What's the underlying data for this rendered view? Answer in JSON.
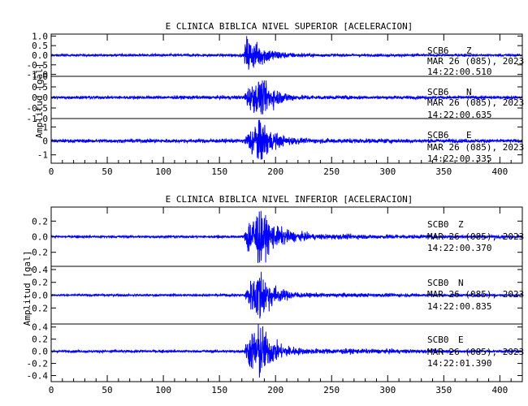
{
  "chart_data": [
    {
      "type": "line",
      "title": "E CLINICA BIBLICA NIVEL SUPERIOR [ACELERACION]",
      "xlabel": "",
      "ylabel": "Amplitud [gal]",
      "xlim": [
        0,
        420
      ],
      "x_ticks": [
        0,
        50,
        100,
        150,
        200,
        250,
        300,
        350,
        400
      ],
      "line_color": "#0000ff",
      "grid": false,
      "traces": [
        {
          "station": "SCB6",
          "component": "Z",
          "date_line": "MAR 26 (085), 2023",
          "time_line": "14:22:00.510",
          "ylim": [
            -1.1,
            1.1
          ],
          "y_ticks": [
            1.0,
            0.5,
            0.0,
            -0.5,
            -1.0
          ],
          "tick_labels": [
            "1.0",
            "0.5",
            "0.0",
            "-0.5",
            "-1.0"
          ],
          "noise_level": 0.05,
          "peak_amplitude": 1.0,
          "secondary_events": [
            {
              "t": 253,
              "amplitude": 0.1
            }
          ],
          "envelope": [
            [
              0,
              0.05
            ],
            [
              172,
              0.06
            ],
            [
              174,
              1.0
            ],
            [
              178,
              0.7
            ],
            [
              186,
              0.5
            ],
            [
              195,
              0.3
            ],
            [
              210,
              0.12
            ],
            [
              240,
              0.06
            ],
            [
              420,
              0.05
            ]
          ]
        },
        {
          "station": "SCB6",
          "component": "N",
          "date_line": "MAR 26 (085), 2023",
          "time_line": "14:22:00.635",
          "ylim": [
            -1.0,
            1.0
          ],
          "y_ticks": [
            1.0,
            0.5,
            0.0,
            -0.5,
            -1.0
          ],
          "tick_labels": [
            "1.0",
            "0.5",
            "0.0",
            "-0.5",
            "-1.0"
          ],
          "noise_level": 0.06,
          "peak_amplitude": 0.8,
          "envelope": [
            [
              0,
              0.06
            ],
            [
              172,
              0.07
            ],
            [
              174,
              0.4
            ],
            [
              182,
              0.6
            ],
            [
              187,
              0.8
            ],
            [
              195,
              0.5
            ],
            [
              205,
              0.25
            ],
            [
              220,
              0.1
            ],
            [
              250,
              0.07
            ],
            [
              420,
              0.06
            ]
          ]
        },
        {
          "station": "SCB6",
          "component": "E",
          "date_line": "MAR 26 (085), 2023",
          "time_line": "14:22:00.335",
          "ylim": [
            -1.6,
            1.6
          ],
          "y_ticks": [
            1,
            0,
            -1
          ],
          "tick_labels": [
            "1",
            "0",
            "-1"
          ],
          "noise_level": 0.1,
          "peak_amplitude": 1.5,
          "envelope": [
            [
              0,
              0.1
            ],
            [
              172,
              0.12
            ],
            [
              175,
              0.5
            ],
            [
              182,
              1.3
            ],
            [
              186,
              1.5
            ],
            [
              195,
              0.7
            ],
            [
              205,
              0.35
            ],
            [
              225,
              0.15
            ],
            [
              420,
              0.1
            ]
          ]
        }
      ]
    },
    {
      "type": "line",
      "title": "E CLINICA BIBLICA NIVEL INFERIOR [ACELERACION]",
      "xlabel": "",
      "ylabel": "Amplitud [gal]",
      "xlim": [
        0,
        420
      ],
      "x_ticks": [
        0,
        50,
        100,
        150,
        200,
        250,
        300,
        350,
        400
      ],
      "line_color": "#0000ff",
      "grid": false,
      "traces": [
        {
          "station": "SCB0",
          "component": "Z",
          "date_line": "MAR 26 (085), 2023",
          "time_line": "14:22:00.370",
          "ylim": [
            -0.38,
            0.38
          ],
          "y_ticks": [
            0.2,
            0.0,
            -0.2
          ],
          "tick_labels": [
            "0.2",
            "0.0",
            "-0.2"
          ],
          "noise_level": 0.012,
          "peak_amplitude": 0.33,
          "envelope": [
            [
              0,
              0.012
            ],
            [
              172,
              0.015
            ],
            [
              175,
              0.2
            ],
            [
              180,
              0.25
            ],
            [
              185,
              0.33
            ],
            [
              192,
              0.2
            ],
            [
              200,
              0.12
            ],
            [
              215,
              0.06
            ],
            [
              235,
              0.03
            ],
            [
              420,
              0.012
            ]
          ]
        },
        {
          "station": "SCB0",
          "component": "N",
          "date_line": "MAR 26 (085), 2023",
          "time_line": "14:22:00.835",
          "ylim": [
            -0.45,
            0.45
          ],
          "y_ticks": [
            0.4,
            0.2,
            0.0,
            -0.2
          ],
          "tick_labels": [
            "0.4",
            "0.2",
            "0.0",
            "-0.2"
          ],
          "noise_level": 0.012,
          "peak_amplitude": 0.4,
          "envelope": [
            [
              0,
              0.012
            ],
            [
              172,
              0.015
            ],
            [
              175,
              0.12
            ],
            [
              182,
              0.3
            ],
            [
              186,
              0.4
            ],
            [
              193,
              0.2
            ],
            [
              205,
              0.08
            ],
            [
              225,
              0.03
            ],
            [
              420,
              0.012
            ]
          ]
        },
        {
          "station": "SCB0",
          "component": "E",
          "date_line": "MAR 26 (085), 2023",
          "time_line": "14:22:01.390",
          "ylim": [
            -0.5,
            0.45
          ],
          "y_ticks": [
            0.4,
            0.2,
            0.0,
            -0.2,
            -0.4
          ],
          "tick_labels": [
            "0.4",
            "0.2",
            "0.0",
            "-0.2",
            "-0.4"
          ],
          "noise_level": 0.015,
          "peak_amplitude": 0.45,
          "envelope": [
            [
              0,
              0.015
            ],
            [
              172,
              0.02
            ],
            [
              175,
              0.2
            ],
            [
              182,
              0.35
            ],
            [
              186,
              0.45
            ],
            [
              193,
              0.22
            ],
            [
              205,
              0.1
            ],
            [
              225,
              0.04
            ],
            [
              420,
              0.015
            ]
          ]
        }
      ]
    }
  ]
}
